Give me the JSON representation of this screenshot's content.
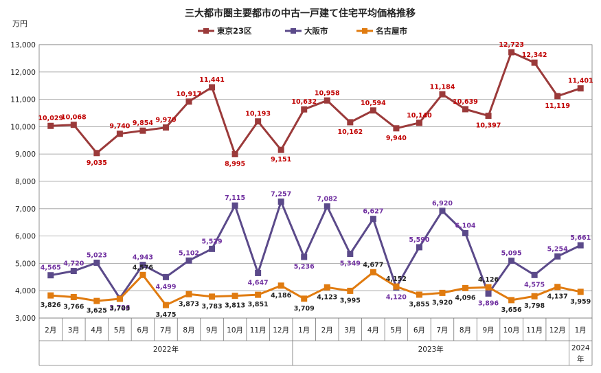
{
  "chart_data": {
    "type": "line",
    "title": "三大都市圏主要都市の中古一戸建て住宅平均価格推移",
    "ylabel": "万円",
    "ylim": [
      3000,
      13000
    ],
    "yticks": [
      3000,
      4000,
      5000,
      6000,
      7000,
      8000,
      9000,
      10000,
      11000,
      12000,
      13000
    ],
    "ytick_labels": [
      "3,000",
      "4,000",
      "5,000",
      "6,000",
      "7,000",
      "8,000",
      "9,000",
      "10,000",
      "11,000",
      "12,000",
      "13,000"
    ],
    "grid": true,
    "legend_position": "top-center",
    "categories": [
      "2月",
      "3月",
      "4月",
      "5月",
      "6月",
      "7月",
      "8月",
      "9月",
      "10月",
      "11月",
      "12月",
      "1月",
      "2月",
      "3月",
      "4月",
      "5月",
      "6月",
      "7月",
      "8月",
      "9月",
      "10月",
      "11月",
      "12月",
      "1月"
    ],
    "year_groups": [
      {
        "label": "2022年",
        "start": 0,
        "end": 10
      },
      {
        "label": "2023年",
        "start": 11,
        "end": 22
      },
      {
        "label": "2024",
        "label2": "年",
        "start": 23,
        "end": 23
      }
    ],
    "series": [
      {
        "name": "東京23区",
        "color": "#9b3a3a",
        "label_color": "#c00000",
        "marker": "square",
        "values": [
          10029,
          10068,
          9035,
          9740,
          9854,
          9970,
          10917,
          11441,
          8995,
          10193,
          9151,
          10632,
          10958,
          10162,
          10594,
          9940,
          10140,
          11184,
          10639,
          10397,
          12723,
          12342,
          11119,
          11401
        ],
        "labels": [
          "10,029",
          "10,068",
          "9,035",
          "9,740",
          "9,854",
          "9,970",
          "10,917",
          "11,441",
          "8,995",
          "10,193",
          "9,151",
          "10,632",
          "10,958",
          "10,162",
          "10,594",
          "9,940",
          "10,140",
          "11,184",
          "10,639",
          "10,397",
          "12,723",
          "12,342",
          "11,119",
          "11,401"
        ]
      },
      {
        "name": "大阪市",
        "color": "#5b4a8a",
        "label_color": "#7030a0",
        "marker": "square",
        "values": [
          4565,
          4720,
          5023,
          3726,
          4943,
          4499,
          5102,
          5529,
          7115,
          4647,
          7257,
          5236,
          7082,
          5349,
          6627,
          4120,
          5590,
          6920,
          6104,
          3896,
          5095,
          4575,
          5254,
          5661
        ],
        "labels": [
          "4,565",
          "4,720",
          "5,023",
          "3,726",
          "4,943",
          "4,499",
          "5,102",
          "5,529",
          "7,115",
          "4,647",
          "7,257",
          "5,236",
          "7,082",
          "5,349",
          "6,627",
          "4,120",
          "5,590",
          "6,920",
          "6,104",
          "3,896",
          "5,095",
          "4,575",
          "5,254",
          "5,661"
        ]
      },
      {
        "name": "名古屋市",
        "color": "#e07b10",
        "label_color": "#222222",
        "marker": "square",
        "values": [
          3826,
          3766,
          3625,
          3703,
          4576,
          3475,
          3873,
          3783,
          3813,
          3851,
          4186,
          3709,
          4123,
          3995,
          4677,
          4152,
          3855,
          3920,
          4096,
          4126,
          3656,
          3798,
          4137,
          3959
        ],
        "labels": [
          "3,826",
          "3,766",
          "3,625",
          "3,703",
          "4,576",
          "3,475",
          "3,873",
          "3,783",
          "3,813",
          "3,851",
          "4,186",
          "3,709",
          "4,123",
          "3,995",
          "4,677",
          "4,152",
          "3,855",
          "3,920",
          "4,096",
          "4,126",
          "3,656",
          "3,798",
          "4,137",
          "3,959"
        ]
      }
    ]
  }
}
